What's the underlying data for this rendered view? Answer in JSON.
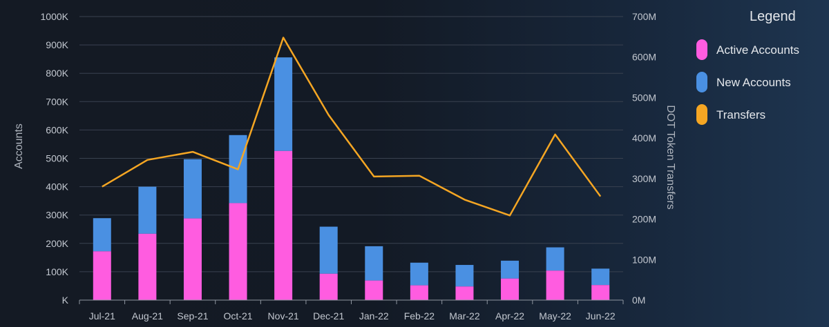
{
  "chart_data": {
    "type": "bar",
    "stacked": true,
    "categories": [
      "Jul-21",
      "Aug-21",
      "Sep-21",
      "Oct-21",
      "Nov-21",
      "Dec-21",
      "Jan-22",
      "Feb-22",
      "Mar-22",
      "Apr-22",
      "May-22",
      "Jun-22"
    ],
    "series": [
      {
        "name": "Active Accounts",
        "kind": "bar",
        "axis": "left",
        "color": "#ff5ce0",
        "values": [
          172000,
          234000,
          288000,
          342000,
          526000,
          93000,
          69000,
          52000,
          48000,
          76000,
          104000,
          53000
        ]
      },
      {
        "name": "New Accounts",
        "kind": "bar",
        "axis": "left",
        "color": "#4a90e2",
        "values": [
          117000,
          166000,
          209000,
          240000,
          330000,
          166000,
          121000,
          80000,
          76000,
          63000,
          82000,
          58000
        ]
      },
      {
        "name": "Transfers",
        "kind": "line",
        "axis": "right",
        "color": "#f5a623",
        "values": [
          280000000,
          346000000,
          366000000,
          323000000,
          648000000,
          457000000,
          305000000,
          307000000,
          248000000,
          209000000,
          409000000,
          256000000
        ]
      }
    ],
    "y_left": {
      "label": "Accounts",
      "min": 0,
      "max": 1000000,
      "ticks": [
        "K",
        "100K",
        "200K",
        "300K",
        "400K",
        "500K",
        "600K",
        "700K",
        "800K",
        "900K",
        "1000K"
      ]
    },
    "y_right": {
      "label": "DOT Token Transfers",
      "min": 0,
      "max": 700000000,
      "ticks": [
        "0M",
        "100M",
        "200M",
        "300M",
        "400M",
        "500M",
        "600M",
        "700M"
      ]
    },
    "legend": {
      "title": "Legend",
      "position": "right"
    },
    "grid": true
  }
}
